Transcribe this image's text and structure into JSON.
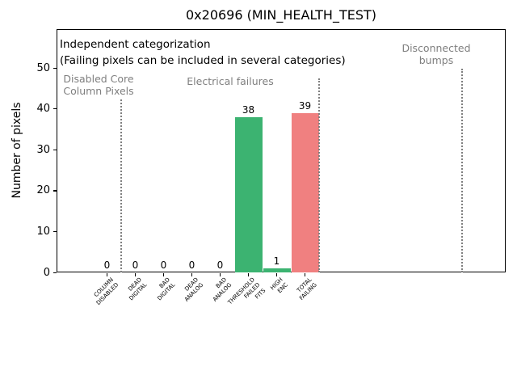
{
  "chart_data": {
    "type": "bar",
    "title": "0x20696 (MIN_HEALTH_TEST)",
    "xlabel": "",
    "ylabel": "Number of pixels",
    "categories": [
      "COLUMN\nDISABLED",
      "DEAD\nDIGITAL",
      "BAD\nDIGITAL",
      "DEAD\nANALOG",
      "BAD\nANALOG",
      "THRESHOLD\nFAILED\nFITS",
      "HIGH\nENC",
      "TOTAL\nFAILING"
    ],
    "values": [
      0,
      0,
      0,
      0,
      0,
      38,
      1,
      39
    ],
    "value_labels": [
      "0",
      "0",
      "0",
      "0",
      "0",
      "38",
      "1",
      "39"
    ],
    "bar_colors": [
      "#3cb371",
      "#3cb371",
      "#3cb371",
      "#3cb371",
      "#3cb371",
      "#3cb371",
      "#3cb371",
      "#f08080"
    ],
    "yticks": [
      0,
      10,
      20,
      30,
      40,
      50
    ],
    "ylim": [
      0,
      59.5
    ],
    "grid": false,
    "legend": null,
    "annotations": {
      "note_line1": "Independent categorization",
      "note_line2": "(Failing pixels can be included in several categories)",
      "regions": [
        {
          "label": "Disabled Core\nColumn Pixels"
        },
        {
          "label": "Electrical failures"
        },
        {
          "label": "Disconnected\nbumps"
        }
      ]
    },
    "colors": {
      "bar_green": "#3cb371",
      "bar_red": "#f08080",
      "annotation_gray": "#7f7f7f",
      "separator_gray": "#7f7f7f",
      "text_black": "#000000"
    }
  }
}
